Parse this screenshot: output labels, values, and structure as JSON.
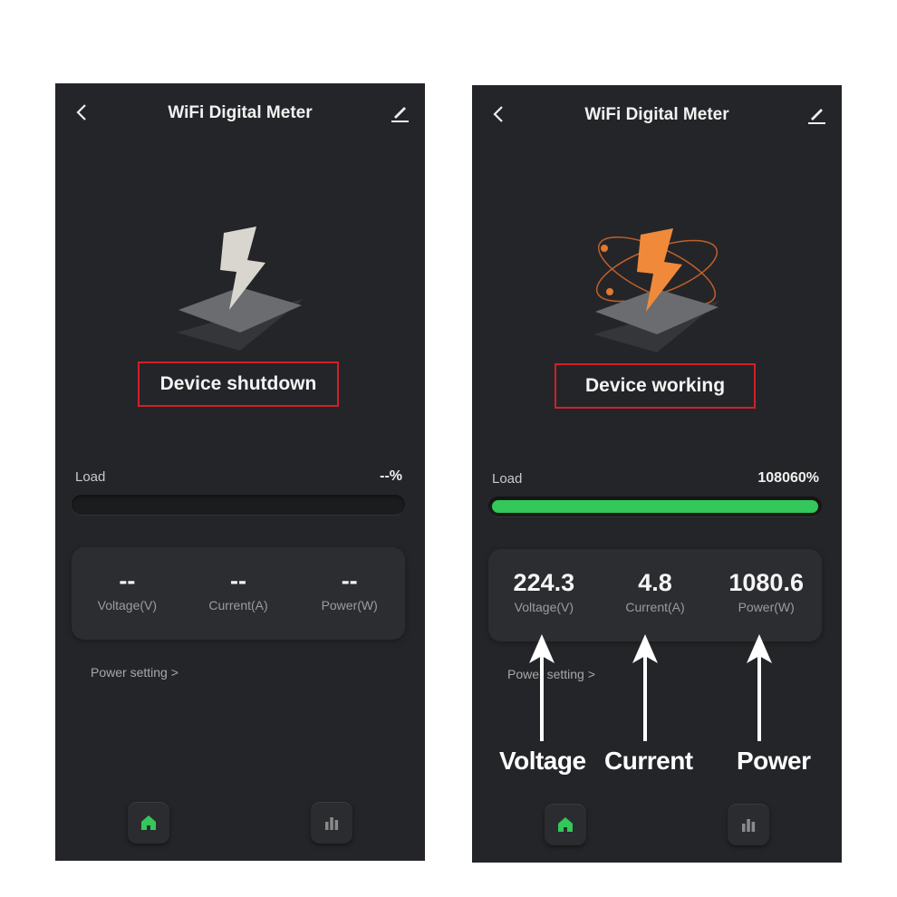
{
  "screens": [
    {
      "header": {
        "title": "WiFi Digital Meter",
        "back_icon": "chevron-left-icon",
        "edit_icon": "pencil-icon"
      },
      "status": "Device shutdown",
      "illustration": "lightning-bolt-grey",
      "load": {
        "label": "Load",
        "value": "--%",
        "fill_fraction": 0
      },
      "stats": [
        {
          "value": "--",
          "label": "Voltage(V)"
        },
        {
          "value": "--",
          "label": "Current(A)"
        },
        {
          "value": "--",
          "label": "Power(W)"
        }
      ],
      "power_setting": "Power setting >",
      "nav": {
        "home_icon": "home-icon",
        "chart_icon": "bar-chart-icon"
      }
    },
    {
      "header": {
        "title": "WiFi Digital Meter",
        "back_icon": "chevron-left-icon",
        "edit_icon": "pencil-icon"
      },
      "status": "Device working",
      "illustration": "lightning-bolt-orange-orbit",
      "load": {
        "label": "Load",
        "value": "108060%",
        "fill_fraction": 1
      },
      "stats": [
        {
          "value": "224.3",
          "label": "Voltage(V)"
        },
        {
          "value": "4.8",
          "label": "Current(A)"
        },
        {
          "value": "1080.6",
          "label": "Power(W)"
        }
      ],
      "power_setting": "Power setting >",
      "nav": {
        "home_icon": "home-icon",
        "chart_icon": "bar-chart-icon"
      },
      "annotations": [
        "Voltage",
        "Current",
        "Power"
      ]
    }
  ],
  "colors": {
    "accent_green": "#34c759",
    "highlight_red": "#d0202a",
    "background": "#242528",
    "bolt_orange": "#f08a3a"
  }
}
